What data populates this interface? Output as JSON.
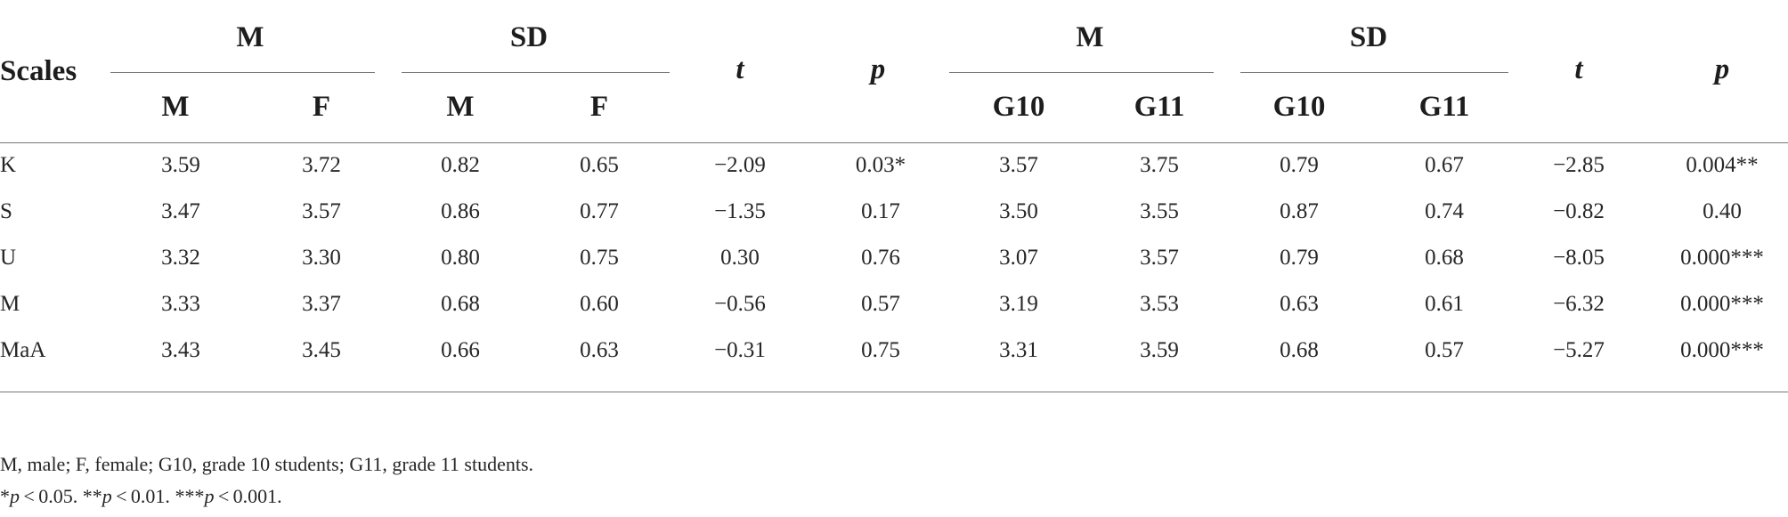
{
  "table": {
    "header": {
      "scales_label": "Scales",
      "group_labels": [
        "M",
        "SD",
        "M",
        "SD"
      ],
      "sub_labels": [
        "M",
        "F",
        "M",
        "F",
        "G10",
        "G11",
        "G10",
        "G11"
      ],
      "t_label_1": "t",
      "p_label_1": "p",
      "t_label_2": "t",
      "p_label_2": "p"
    },
    "rows": [
      {
        "scale": "K",
        "cells": [
          "3.59",
          "3.72",
          "0.82",
          "0.65",
          "−2.09",
          "0.03*",
          "3.57",
          "3.75",
          "0.79",
          "0.67",
          "−2.85",
          "0.004**"
        ]
      },
      {
        "scale": "S",
        "cells": [
          "3.47",
          "3.57",
          "0.86",
          "0.77",
          "−1.35",
          "0.17",
          "3.50",
          "3.55",
          "0.87",
          "0.74",
          "−0.82",
          "0.40"
        ]
      },
      {
        "scale": "U",
        "cells": [
          "3.32",
          "3.30",
          "0.80",
          "0.75",
          "0.30",
          "0.76",
          "3.07",
          "3.57",
          "0.79",
          "0.68",
          "−8.05",
          "0.000***"
        ]
      },
      {
        "scale": "M",
        "cells": [
          "3.33",
          "3.37",
          "0.68",
          "0.60",
          "−0.56",
          "0.57",
          "3.19",
          "3.53",
          "0.63",
          "0.61",
          "−6.32",
          "0.000***"
        ]
      },
      {
        "scale": "MaA",
        "cells": [
          "3.43",
          "3.45",
          "0.66",
          "0.63",
          "−0.31",
          "0.75",
          "3.31",
          "3.59",
          "0.68",
          "0.57",
          "−5.27",
          "0.000***"
        ]
      }
    ]
  },
  "notes": {
    "abbreviations": "M, male; F, female; G10, grade 10 students; G11, grade 11 students.",
    "sig_1_mark": "*",
    "sig_1_p": "p",
    "sig_1_rest": " < 0.05.",
    "sig_2_mark": "**",
    "sig_2_p": "p",
    "sig_2_rest": " < 0.01.",
    "sig_3_mark": "***",
    "sig_3_p": "p",
    "sig_3_rest": " < 0.001."
  }
}
